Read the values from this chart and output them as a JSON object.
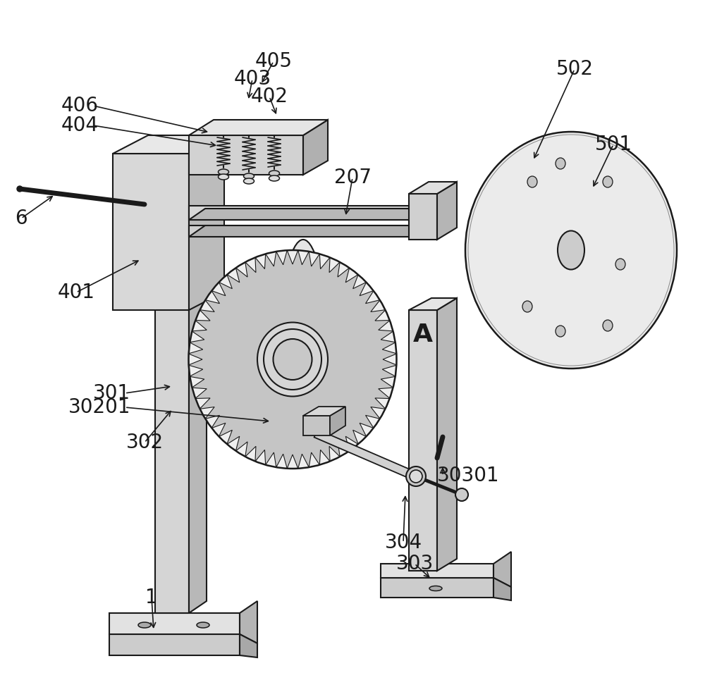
{
  "background_color": "#ffffff",
  "line_color": "#1a1a1a",
  "figsize": [
    10.0,
    9.65
  ],
  "dpi": 100
}
